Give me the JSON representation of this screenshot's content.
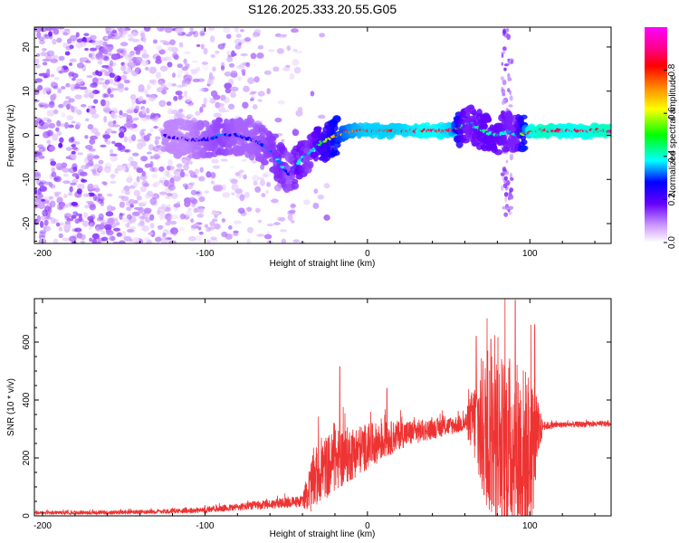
{
  "title": "S126.2025.333.20.55.G05",
  "chart_data": [
    {
      "type": "heatmap",
      "name": "spectrogram",
      "xlabel": "Height of straight line (km)",
      "ylabel": "Frequency (Hz)",
      "xlim": [
        -205,
        150
      ],
      "ylim": [
        -24.5,
        24.5
      ],
      "xticks": [
        -200,
        -100,
        0,
        100
      ],
      "yticks": [
        -20,
        -10,
        0,
        10,
        20
      ],
      "colorbar": {
        "label": "Normalized spectral amplitude",
        "range": [
          0,
          1
        ],
        "ticks": [
          "0.0",
          "0.2",
          "0.4",
          "0.6",
          "0.8"
        ],
        "colors": [
          "#ffffff",
          "#cc99ff",
          "#6600ff",
          "#0000ff",
          "#00ffff",
          "#00ff00",
          "#ffff00",
          "#ff8800",
          "#ff0000",
          "#ff0088",
          "#ff00ff"
        ]
      },
      "ridge": {
        "x": [
          -125,
          -110,
          -100,
          -90,
          -80,
          -70,
          -60,
          -52,
          -48,
          -42,
          -36,
          -30,
          -24,
          -18,
          -10,
          0,
          20,
          40,
          52,
          58,
          62,
          70,
          80,
          88,
          92,
          100,
          110,
          120,
          130,
          150
        ],
        "freq": [
          0,
          -1,
          -1,
          0,
          0,
          -1,
          -3,
          -7,
          -9,
          -6,
          -4,
          -2,
          -1,
          0,
          1,
          1,
          1,
          1,
          1,
          2,
          3,
          1,
          0,
          1,
          0,
          1,
          1,
          1,
          1,
          1
        ],
        "amplitude": [
          0.25,
          0.25,
          0.3,
          0.35,
          0.3,
          0.3,
          0.35,
          0.4,
          0.3,
          0.45,
          0.35,
          0.5,
          0.55,
          0.7,
          0.8,
          0.85,
          0.85,
          0.9,
          0.85,
          0.5,
          0.4,
          0.45,
          0.45,
          0.4,
          0.4,
          0.9,
          0.95,
          0.9,
          0.9,
          0.95
        ]
      },
      "noise_region_x": [
        -205,
        -100
      ]
    },
    {
      "type": "line",
      "name": "snr",
      "xlabel": "Height of straight line (km)",
      "ylabel": "SNR (10 * v/v)",
      "xlim": [
        -205,
        150
      ],
      "ylim": [
        0,
        750
      ],
      "xticks": [
        -200,
        -100,
        0,
        100
      ],
      "yticks": [
        0,
        200,
        400,
        600
      ],
      "color": "#ee3333",
      "envelope": {
        "x": [
          -205,
          -150,
          -100,
          -70,
          -40,
          -35,
          -30,
          -20,
          0,
          20,
          40,
          60,
          65,
          70,
          80,
          90,
          100,
          105,
          108,
          120,
          150
        ],
        "mean": [
          10,
          12,
          20,
          35,
          50,
          100,
          150,
          190,
          240,
          280,
          300,
          320,
          330,
          300,
          260,
          240,
          200,
          280,
          310,
          315,
          318
        ],
        "spread": [
          6,
          7,
          10,
          15,
          20,
          90,
          110,
          110,
          80,
          50,
          35,
          30,
          120,
          250,
          300,
          320,
          300,
          120,
          15,
          10,
          10
        ]
      },
      "peaks": [
        {
          "x": -17,
          "y": 515
        },
        {
          "x": 12,
          "y": 440
        },
        {
          "x": 67,
          "y": 620
        },
        {
          "x": 76,
          "y": 610
        },
        {
          "x": 91,
          "y": 745
        },
        {
          "x": 103,
          "y": 660
        }
      ]
    }
  ]
}
